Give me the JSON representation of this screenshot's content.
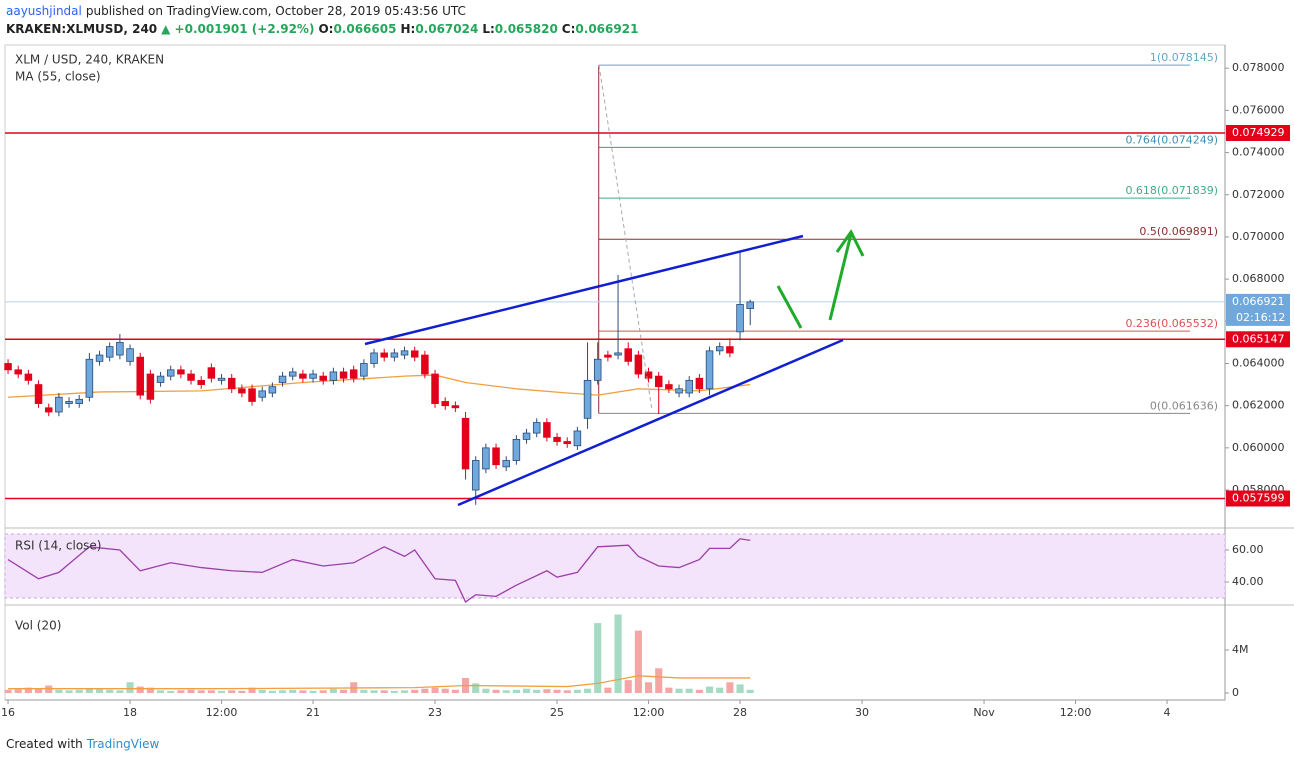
{
  "header": {
    "author": "aayushjindal",
    "published": "published on TradingView.com, October 28, 2019 05:43:56 UTC",
    "symbol": "KRAKEN:XLMUSD, 240",
    "change": "▲ +0.001901 (+2.92%)",
    "ohlc": [
      {
        "key": "O:",
        "value": "0.066605"
      },
      {
        "key": "H:",
        "value": "0.067024"
      },
      {
        "key": "L:",
        "value": "0.065820"
      },
      {
        "key": "C:",
        "value": "0.066921"
      }
    ]
  },
  "footer": {
    "prefix": "Created with",
    "brand": "TradingView"
  },
  "chart_data": {
    "type": "candlestick",
    "title": "XLM / USD, 240, KRAKEN",
    "up_color": "#6fa8dc",
    "up_border": "#2b4a7a",
    "down_color": "#e3001b",
    "xlim": [
      -0.3,
      119.7
    ],
    "xticks": [
      {
        "value": 0,
        "label": "16"
      },
      {
        "value": 12,
        "label": "18"
      },
      {
        "value": 21,
        "label": "12:00"
      },
      {
        "value": 30,
        "label": "21"
      },
      {
        "value": 42,
        "label": "23"
      },
      {
        "value": 54,
        "label": "25"
      },
      {
        "value": 63,
        "label": "12:00"
      },
      {
        "value": 72,
        "label": "28"
      },
      {
        "value": 84,
        "label": "30"
      },
      {
        "value": 96,
        "label": "Nov"
      },
      {
        "value": 105,
        "label": "12:00"
      },
      {
        "value": 114,
        "label": "4"
      }
    ],
    "ylim": [
      0.0562,
      0.0791
    ],
    "yticks": [
      {
        "value": 0.058,
        "label": "0.058000"
      },
      {
        "value": 0.06,
        "label": "0.060000"
      },
      {
        "value": 0.062,
        "label": "0.062000"
      },
      {
        "value": 0.064,
        "label": "0.064000"
      },
      {
        "value": 0.066,
        "label": "0.066000"
      },
      {
        "value": 0.068,
        "label": "0.068000"
      },
      {
        "value": 0.07,
        "label": "0.070000"
      },
      {
        "value": 0.072,
        "label": "0.072000"
      },
      {
        "value": 0.074,
        "label": "0.074000"
      },
      {
        "value": 0.076,
        "label": "0.076000"
      },
      {
        "value": 0.078,
        "label": "0.078000"
      }
    ],
    "open": [
      0.064,
      0.0637,
      0.0635,
      0.063,
      0.0619,
      0.0617,
      0.0621,
      0.0621,
      0.0624,
      0.0641,
      0.0643,
      0.0644,
      0.0641,
      0.0643,
      0.0635,
      0.0631,
      0.0634,
      0.0637,
      0.0635,
      0.0632,
      0.0638,
      0.0632,
      0.0633,
      0.0628,
      0.0628,
      0.0624,
      0.0626,
      0.0631,
      0.0634,
      0.0635,
      0.0633,
      0.0634,
      0.0632,
      0.0636,
      0.0637,
      0.0634,
      0.064,
      0.0645,
      0.0643,
      0.0644,
      0.0646,
      0.0644,
      0.0635,
      0.0622,
      0.062,
      0.0614,
      0.058,
      0.059,
      0.06,
      0.0591,
      0.0594,
      0.0604,
      0.0607,
      0.0612,
      0.0605,
      0.0603,
      0.0601,
      0.0614,
      0.0632,
      0.0644,
      0.0644,
      0.0647,
      0.0644,
      0.0636,
      0.0634,
      0.063,
      0.0626,
      0.0626,
      0.0633,
      0.0628,
      0.0646,
      0.0648,
      0.0655,
      0.066605
    ],
    "high": [
      0.0642,
      0.0639,
      0.0637,
      0.0632,
      0.0621,
      0.0626,
      0.0624,
      0.0625,
      0.0645,
      0.0646,
      0.065,
      0.0654,
      0.0649,
      0.0645,
      0.0637,
      0.0636,
      0.0639,
      0.0639,
      0.0637,
      0.0634,
      0.064,
      0.0635,
      0.0635,
      0.063,
      0.063,
      0.0629,
      0.0631,
      0.0636,
      0.0638,
      0.0637,
      0.0637,
      0.0636,
      0.0638,
      0.0638,
      0.0639,
      0.0642,
      0.0647,
      0.0647,
      0.0647,
      0.0648,
      0.0648,
      0.0646,
      0.0637,
      0.0624,
      0.0622,
      0.0617,
      0.0596,
      0.0602,
      0.0602,
      0.0596,
      0.0606,
      0.0609,
      0.0614,
      0.0614,
      0.0607,
      0.0605,
      0.061,
      0.065,
      0.065,
      0.0646,
      0.0682,
      0.065,
      0.0646,
      0.0638,
      0.0636,
      0.0632,
      0.063,
      0.0634,
      0.0635,
      0.0648,
      0.065,
      0.0652,
      0.0693,
      0.067024
    ],
    "low": [
      0.0635,
      0.0633,
      0.063,
      0.0619,
      0.0615,
      0.0615,
      0.0619,
      0.0619,
      0.0622,
      0.0639,
      0.0641,
      0.0642,
      0.0639,
      0.0623,
      0.0621,
      0.0629,
      0.0632,
      0.0633,
      0.063,
      0.0628,
      0.0631,
      0.063,
      0.0626,
      0.0624,
      0.062,
      0.0622,
      0.0624,
      0.0629,
      0.0632,
      0.0631,
      0.0631,
      0.063,
      0.063,
      0.0631,
      0.0631,
      0.0632,
      0.0638,
      0.0641,
      0.0641,
      0.0642,
      0.0641,
      0.0633,
      0.0619,
      0.0618,
      0.0617,
      0.0585,
      0.0573,
      0.0588,
      0.059,
      0.0589,
      0.0592,
      0.0602,
      0.0605,
      0.0603,
      0.0601,
      0.06,
      0.0599,
      0.0609,
      0.063,
      0.0641,
      0.0642,
      0.0639,
      0.0633,
      0.0631,
      0.0616,
      0.0626,
      0.0624,
      0.0624,
      0.0626,
      0.0625,
      0.0644,
      0.0643,
      0.0651,
      0.06582
    ],
    "close": [
      0.0637,
      0.0635,
      0.0632,
      0.0621,
      0.0617,
      0.0624,
      0.0622,
      0.0623,
      0.0642,
      0.0644,
      0.0648,
      0.065,
      0.0647,
      0.0625,
      0.0623,
      0.0634,
      0.0637,
      0.0635,
      0.0632,
      0.063,
      0.0633,
      0.0633,
      0.0628,
      0.0626,
      0.0622,
      0.0627,
      0.0629,
      0.0634,
      0.0636,
      0.0633,
      0.0635,
      0.0632,
      0.0636,
      0.0633,
      0.0633,
      0.064,
      0.0645,
      0.0643,
      0.0645,
      0.0646,
      0.0643,
      0.0635,
      0.0621,
      0.062,
      0.0619,
      0.059,
      0.0594,
      0.06,
      0.0592,
      0.0594,
      0.0604,
      0.0607,
      0.0612,
      0.0605,
      0.0603,
      0.0602,
      0.0608,
      0.0632,
      0.0642,
      0.0643,
      0.0645,
      0.0641,
      0.0635,
      0.0633,
      0.0629,
      0.0628,
      0.0628,
      0.0632,
      0.0628,
      0.0646,
      0.0648,
      0.0645,
      0.0668,
      0.066921
    ],
    "ma": {
      "name": "MA (55, close)",
      "color": "#f0a040",
      "x": [
        0,
        9,
        19,
        29,
        39,
        42,
        45,
        50,
        55,
        58,
        62,
        68,
        73
      ],
      "values": [
        0.0624,
        0.06265,
        0.0627,
        0.0631,
        0.0634,
        0.06345,
        0.0631,
        0.0628,
        0.0626,
        0.0625,
        0.0628,
        0.0627,
        0.063
      ]
    },
    "levels": [
      {
        "value": 0.074929,
        "color": "#e3001b"
      },
      {
        "value": 0.065147,
        "color": "#e3001b"
      },
      {
        "value": 0.057599,
        "color": "#e3001b"
      }
    ],
    "last_price": {
      "value": 0.066921,
      "color": "#6fa8dc",
      "countdown": "02:16:12"
    },
    "fib": {
      "start": 58.1,
      "levels": [
        {
          "value": 0.078145,
          "label": "1(0.078145)",
          "color": "#5fa7c9"
        },
        {
          "value": 0.074249,
          "label": "0.764(0.074249)",
          "color": "#3f8fb5"
        },
        {
          "value": 0.071839,
          "label": "0.618(0.071839)",
          "color": "#3fae85"
        },
        {
          "value": 0.069891,
          "label": "0.5(0.069891)",
          "color": "#8b2e2e"
        },
        {
          "value": 0.065532,
          "label": "0.236(0.065532)",
          "color": "#d9534f"
        },
        {
          "value": 0.061636,
          "label": "0(0.061636)",
          "color": "#888888"
        }
      ]
    },
    "rsi": {
      "title": "RSI (14, close)",
      "color": "#9c3fa8",
      "band": [
        30,
        70
      ],
      "ylim": [
        25.6,
        72.5
      ],
      "yticks": [
        {
          "value": 60,
          "label": "60.00"
        },
        {
          "value": 40,
          "label": "40.00"
        }
      ],
      "x": [
        0,
        3,
        5,
        8,
        11,
        13,
        16,
        19,
        22,
        25,
        28,
        31,
        34,
        37,
        39,
        40,
        42,
        44,
        45,
        46,
        48,
        50,
        53,
        54,
        56,
        58,
        61,
        62,
        64,
        66,
        68,
        69,
        71,
        72,
        73
      ],
      "values": [
        54,
        42,
        46,
        62,
        60,
        47,
        52,
        49,
        47,
        46,
        54,
        50,
        52,
        62,
        56,
        60,
        42,
        41,
        27.5,
        32,
        31,
        38,
        47,
        43,
        46,
        62,
        63,
        56,
        50,
        49,
        54,
        61,
        61,
        67,
        66
      ]
    },
    "volume": {
      "title": "Vol (20)",
      "up_color": "#a5dbc3",
      "down_color": "#f4a6a6",
      "ylim": [
        -650000,
        8000000
      ],
      "yticks": [
        0,
        {
          "value": 4000000,
          "label": "4M"
        }
      ],
      "values": [
        300000,
        350000,
        500000,
        400000,
        700000,
        300000,
        250000,
        300000,
        400000,
        350000,
        300000,
        250000,
        1000000,
        600000,
        500000,
        250000,
        200000,
        250000,
        300000,
        250000,
        250000,
        200000,
        250000,
        200000,
        500000,
        300000,
        200000,
        250000,
        300000,
        250000,
        200000,
        250000,
        400000,
        300000,
        1000000,
        300000,
        250000,
        250000,
        200000,
        250000,
        300000,
        400000,
        500000,
        400000,
        300000,
        1400000,
        900000,
        400000,
        300000,
        250000,
        300000,
        400000,
        300000,
        350000,
        300000,
        250000,
        300000,
        400000,
        6500000,
        500000,
        7300000,
        1200000,
        5800000,
        1000000,
        2300000,
        500000,
        400000,
        400000,
        300000,
        600000,
        500000,
        1000000,
        800000,
        300000
      ],
      "ma": {
        "color": "#f0a040",
        "x": [
          0,
          20,
          40,
          45,
          55,
          58,
          62,
          66,
          73
        ],
        "values": [
          400000,
          400000,
          500000,
          700000,
          600000,
          900000,
          1600000,
          1400000,
          1400000
        ]
      }
    }
  }
}
